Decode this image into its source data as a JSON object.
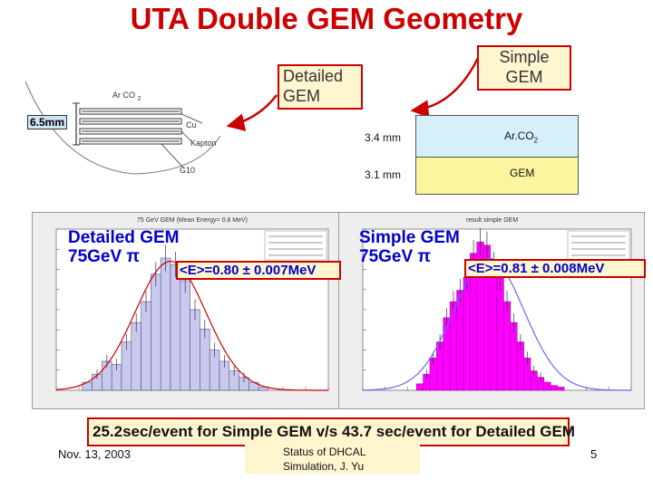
{
  "title": "UTA Double GEM Geometry",
  "callouts": {
    "detailed_gem": "Detailed GEM",
    "simple_gem": "Simple GEM"
  },
  "detailed_diagram": {
    "arco_label": "Ar CO",
    "arco_subscript": "2",
    "thickness_label": "6.5mm",
    "cu_label": "Cu",
    "kapton_label": "Kapton",
    "g10_label": "G10"
  },
  "simple_diagram": {
    "layers": [
      {
        "thickness": "3.4 mm",
        "material": "Ar.CO",
        "material_sub": "2",
        "color": "#d6f0fb"
      },
      {
        "thickness": "3.1 mm",
        "material": "GEM",
        "material_sub": "",
        "color": "#fbf5a0"
      }
    ]
  },
  "plots": {
    "left_title": "75 GeV GEM (Mean Energy= 0.8 MeV)",
    "right_title": "result simple GEM",
    "left_label_line1": "Detailed GEM",
    "left_label_line2": "75GeV π",
    "left_mean": "<E>=0.80 ± 0.007MeV",
    "right_label_line1": "Simple GEM",
    "right_label_line2": "75GeV π",
    "right_mean": "<E>=0.81 ± 0.008MeV"
  },
  "bottom_note": "25.2sec/event for Simple GEM v/s 43.7 sec/event for Detailed GEM",
  "footer": {
    "date": "Nov. 13, 2003",
    "center_line1": "Status of DHCAL",
    "center_line2": "Simulation, J. Yu",
    "page": "5"
  },
  "colors": {
    "title": "#cc0000",
    "callout_border": "#cc0000",
    "callout_fill": "#fff6cf",
    "left_hist_fill": "#c9c9f0",
    "right_hist_fill": "#ff00ff",
    "fit_curve": "#cc0000",
    "label_blue": "#0000cc"
  }
}
